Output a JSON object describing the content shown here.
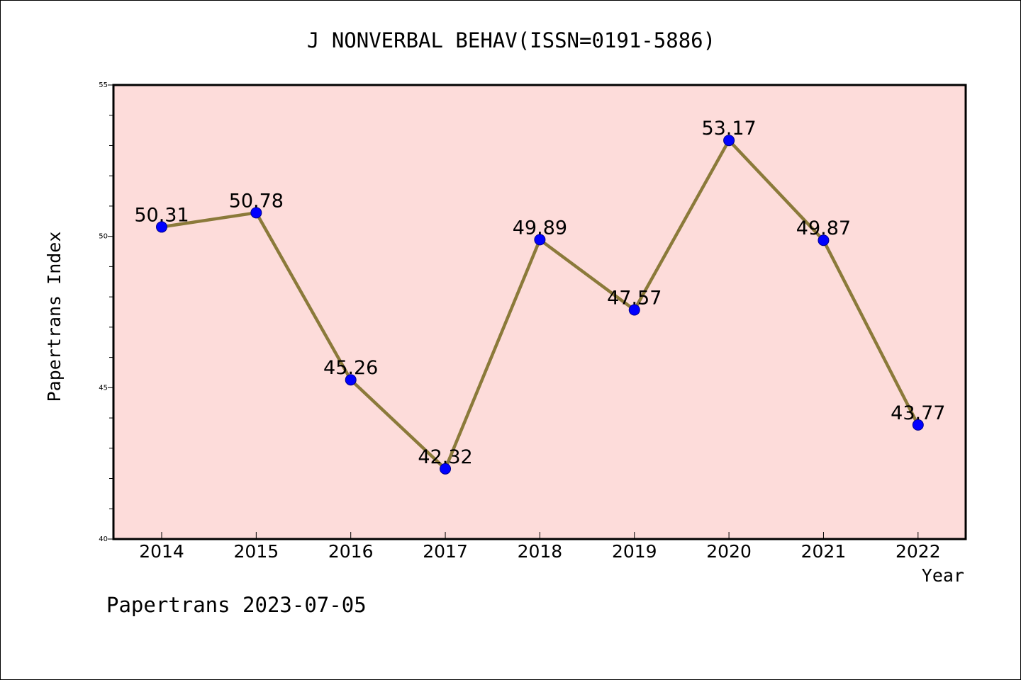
{
  "chart_data": {
    "type": "line",
    "title": "J NONVERBAL BEHAV(ISSN=0191-5886)",
    "xlabel": "Year",
    "ylabel": "Papertrans Index",
    "categories": [
      "2014",
      "2015",
      "2016",
      "2017",
      "2018",
      "2019",
      "2020",
      "2021",
      "2022"
    ],
    "series": [
      {
        "values": [
          50.31,
          50.78,
          45.26,
          42.32,
          49.89,
          47.57,
          53.17,
          49.87,
          43.77
        ],
        "labels": [
          "50.31",
          "50.78",
          "45.26",
          "42.32",
          "49.89",
          "47.57",
          "53.17",
          "49.87",
          "43.77"
        ]
      }
    ],
    "ylim": [
      40,
      55
    ],
    "yticks": [
      "40",
      "45",
      "50",
      "55"
    ],
    "grid": false,
    "colors": {
      "plot_background": "#fddcda",
      "line": "#8b7a3a",
      "marker": "#0000ff"
    }
  },
  "footer": "Papertrans 2023-07-05"
}
